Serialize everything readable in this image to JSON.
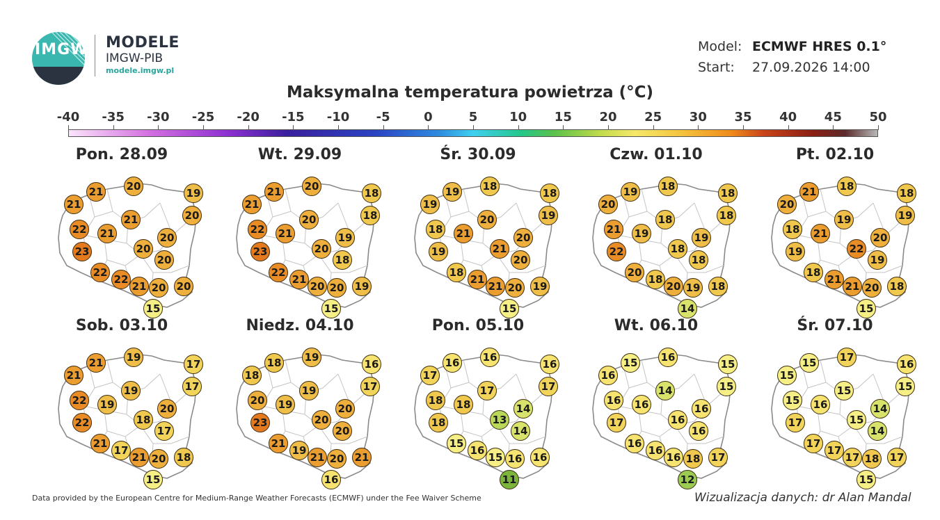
{
  "brand": {
    "logo_text": "IMGW",
    "name": "MODELE",
    "org": "IMGW-PIB",
    "url": "modele.imgw.pl"
  },
  "model": {
    "model_key": "Model:",
    "model_value": "ECMWF HRES 0.1°",
    "start_key": "Start:",
    "start_value": "27.09.2026 14:00"
  },
  "title": "Maksymalna temperatura powietrza (°C)",
  "scale": [
    "-40",
    "-35",
    "-30",
    "-25",
    "-20",
    "-15",
    "-10",
    "-5",
    "0",
    "5",
    "10",
    "15",
    "20",
    "25",
    "30",
    "35",
    "40",
    "45",
    "50"
  ],
  "color_map": {
    "11": "#7cb53c",
    "12": "#9ccb52",
    "13": "#b9d85a",
    "14": "#d7e36a",
    "15": "#f6ef86",
    "16": "#f6e370",
    "17": "#f3d45a",
    "18": "#f1c84e",
    "19": "#efbe48",
    "20": "#eeaf3c",
    "21": "#ec9d30",
    "22": "#e98c26",
    "23": "#e47a1e"
  },
  "days": [
    {
      "label": "Pon. 28.09",
      "values": [
        21,
        20,
        19,
        21,
        21,
        20,
        22,
        21,
        20,
        23,
        20,
        20,
        22,
        22,
        21,
        20,
        20,
        15
      ]
    },
    {
      "label": "Wt. 29.09",
      "values": [
        21,
        20,
        18,
        21,
        20,
        18,
        22,
        21,
        19,
        23,
        20,
        18,
        22,
        21,
        20,
        20,
        19,
        15
      ]
    },
    {
      "label": "Śr. 30.09",
      "values": [
        19,
        18,
        18,
        19,
        20,
        19,
        18,
        21,
        20,
        19,
        21,
        20,
        18,
        21,
        21,
        20,
        19,
        15
      ]
    },
    {
      "label": "Czw. 01.10",
      "values": [
        19,
        18,
        18,
        20,
        18,
        18,
        21,
        19,
        19,
        22,
        18,
        18,
        20,
        18,
        20,
        19,
        18,
        14
      ]
    },
    {
      "label": "Pt. 02.10",
      "values": [
        21,
        18,
        18,
        20,
        19,
        19,
        18,
        21,
        20,
        19,
        22,
        19,
        18,
        21,
        21,
        20,
        18,
        15
      ]
    },
    {
      "label": "Sob. 03.10",
      "values": [
        21,
        19,
        17,
        21,
        19,
        17,
        22,
        19,
        20,
        22,
        18,
        17,
        21,
        17,
        21,
        20,
        18,
        15
      ]
    },
    {
      "label": "Niedz. 04.10",
      "values": [
        18,
        19,
        16,
        18,
        19,
        17,
        20,
        19,
        20,
        23,
        20,
        20,
        21,
        19,
        21,
        20,
        21,
        16
      ]
    },
    {
      "label": "Pon. 05.10",
      "values": [
        16,
        16,
        16,
        17,
        17,
        17,
        18,
        18,
        14,
        18,
        13,
        14,
        15,
        16,
        15,
        16,
        16,
        11
      ]
    },
    {
      "label": "Wt. 06.10",
      "values": [
        15,
        16,
        15,
        16,
        14,
        15,
        16,
        16,
        16,
        17,
        16,
        16,
        16,
        16,
        16,
        18,
        17,
        12
      ]
    },
    {
      "label": "Śr. 07.10",
      "values": [
        15,
        17,
        16,
        15,
        15,
        15,
        15,
        16,
        14,
        17,
        15,
        14,
        17,
        17,
        17,
        18,
        17,
        15
      ]
    }
  ],
  "footer": {
    "left": "Data provided by the European Centre for Medium-Range Weather Forecasts (ECMWF) under the Fee Waiver Scheme",
    "right": "Wizualizacja danych: dr Alan Mandal"
  }
}
